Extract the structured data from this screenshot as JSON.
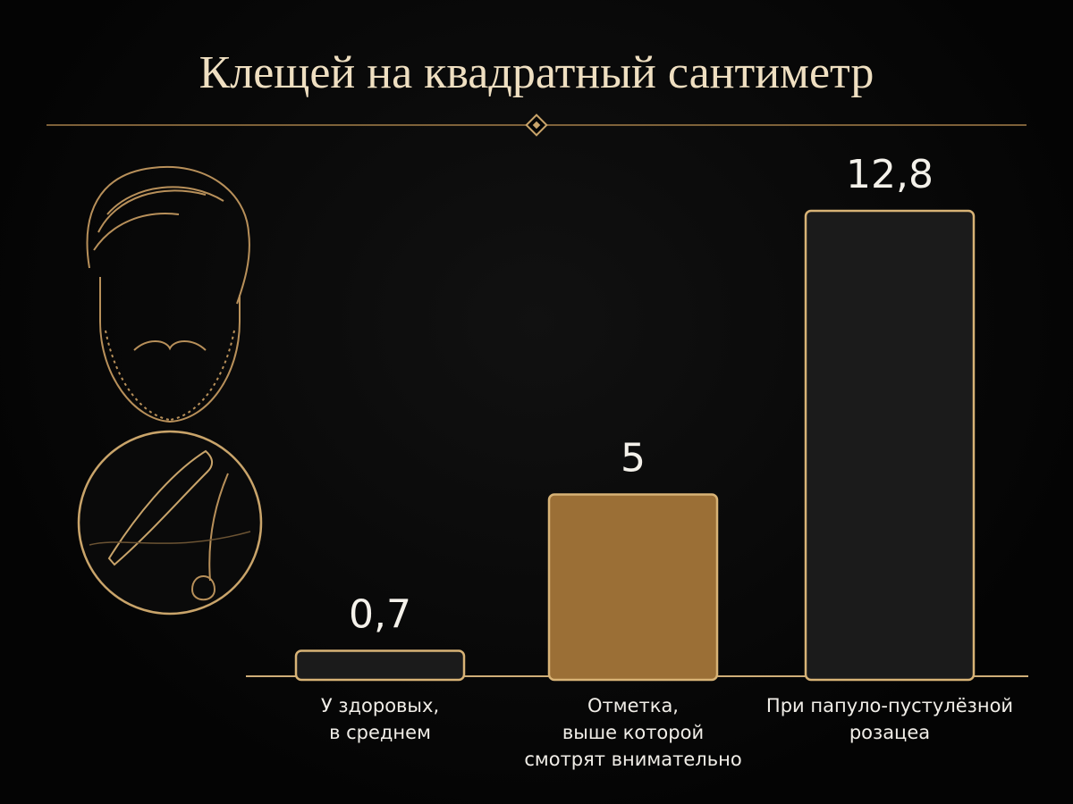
{
  "chart_data": {
    "type": "bar",
    "title": "Клещей на квадратный сантиметр",
    "categories": [
      "У здоровых,\nв среднем",
      "Отметка,\nвыше которой\nсмотрят внимательно",
      "При папуло-пустулёзной\nрозацеа"
    ],
    "values": [
      0.7,
      5,
      12.8
    ],
    "value_labels": [
      "0,7",
      "5",
      "12,8"
    ],
    "colors": [
      "#1b1b1b",
      "#9b6f36",
      "#1b1b1b"
    ],
    "outline_color": "#d8b376"
  }
}
